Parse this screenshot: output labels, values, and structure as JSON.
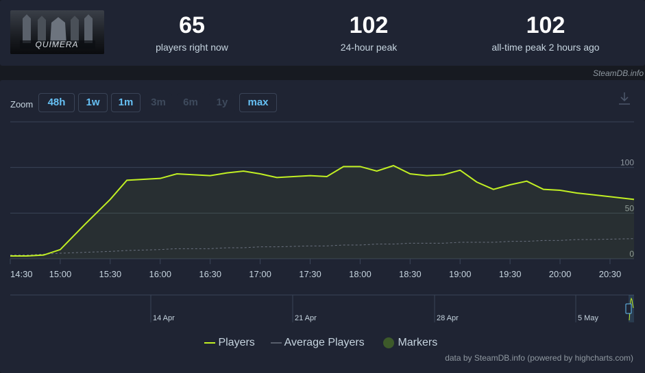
{
  "stats": {
    "now_value": "65",
    "now_label": "players right now",
    "peak24_value": "102",
    "peak24_label": "24-hour peak",
    "alltime_value": "102",
    "alltime_label": "all-time peak 2 hours ago"
  },
  "game_logo": {
    "text": "QUIMERA",
    "icon": "game-capsule-image"
  },
  "credit_top": "SteamDB.info",
  "zoom": {
    "label": "Zoom",
    "buttons": [
      {
        "label": "48h",
        "enabled": true
      },
      {
        "label": "1w",
        "enabled": true
      },
      {
        "label": "1m",
        "enabled": true
      },
      {
        "label": "3m",
        "enabled": false
      },
      {
        "label": "6m",
        "enabled": false
      },
      {
        "label": "1y",
        "enabled": false
      },
      {
        "label": "max",
        "enabled": true
      }
    ]
  },
  "download_icon": "download-icon",
  "colors": {
    "players": "#c2f023",
    "average": "#6b7280",
    "markers": "#3d5a2a",
    "accent": "#66c0f4"
  },
  "chart_data": {
    "type": "line",
    "x_tick_labels": [
      "14:30",
      "15:00",
      "15:30",
      "16:00",
      "16:30",
      "17:00",
      "17:30",
      "18:00",
      "18:30",
      "19:00",
      "19:30",
      "20:00",
      "20:30"
    ],
    "y_tick_labels": [
      "0",
      "50",
      "100"
    ],
    "ylim": [
      0,
      150
    ],
    "x": [
      "14:30",
      "14:40",
      "14:50",
      "15:00",
      "15:15",
      "15:30",
      "15:40",
      "16:00",
      "16:10",
      "16:30",
      "16:40",
      "16:50",
      "17:00",
      "17:10",
      "17:30",
      "17:40",
      "17:50",
      "18:00",
      "18:10",
      "18:20",
      "18:30",
      "18:40",
      "18:50",
      "19:00",
      "19:10",
      "19:20",
      "19:30",
      "19:40",
      "19:50",
      "20:00",
      "20:10",
      "20:20",
      "20:30"
    ],
    "series": [
      {
        "name": "Players",
        "values": [
          3,
          3,
          4,
          10,
          38,
          65,
          86,
          88,
          93,
          91,
          94,
          96,
          93,
          89,
          91,
          90,
          101,
          101,
          96,
          102,
          93,
          91,
          92,
          97,
          84,
          76,
          81,
          85,
          76,
          75,
          72,
          70,
          65
        ]
      },
      {
        "name": "Average Players",
        "values": [
          4,
          4,
          5,
          6,
          7,
          8,
          9,
          10,
          11,
          11,
          12,
          12,
          13,
          13,
          14,
          14,
          15,
          15,
          16,
          16,
          17,
          17,
          17,
          18,
          18,
          18,
          19,
          19,
          20,
          20,
          21,
          21,
          22
        ]
      }
    ],
    "navigator_labels": [
      "14 Apr",
      "21 Apr",
      "28 Apr",
      "5 May"
    ],
    "legend": [
      "Players",
      "Average Players",
      "Markers"
    ],
    "grid": true
  },
  "credit_bottom": "data by SteamDB.info (powered by highcharts.com)"
}
